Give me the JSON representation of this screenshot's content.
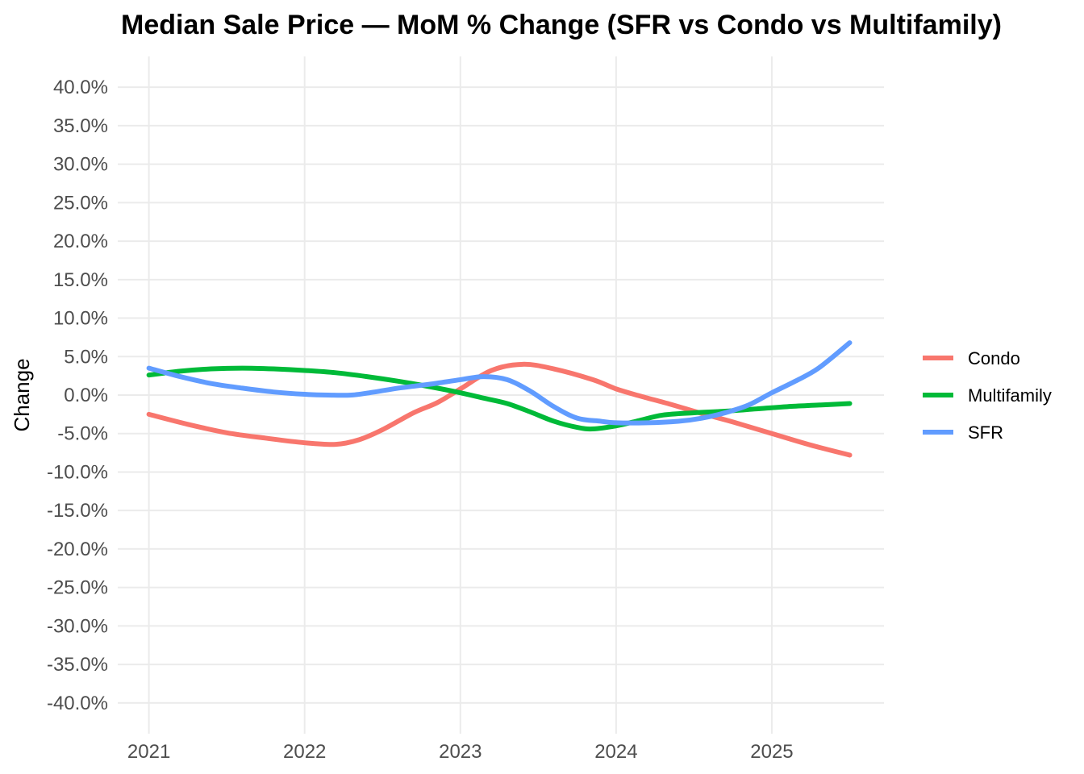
{
  "chart_data": {
    "type": "line",
    "title": "Median Sale Price — MoM % Change (SFR vs Condo vs Multifamily)",
    "xlabel": "",
    "ylabel": "Change",
    "xlim": [
      2020.8,
      2025.72
    ],
    "ylim": [
      -44,
      44
    ],
    "x_ticks": [
      2021,
      2022,
      2023,
      2024,
      2025
    ],
    "x_tick_labels": [
      "2021",
      "2022",
      "2023",
      "2024",
      "2025"
    ],
    "y_ticks": [
      -40,
      -35,
      -30,
      -25,
      -20,
      -15,
      -10,
      -5,
      0,
      5,
      10,
      15,
      20,
      25,
      30,
      35,
      40
    ],
    "y_tick_labels": [
      "-40.0%",
      "-35.0%",
      "-30.0%",
      "-25.0%",
      "-20.0%",
      "-15.0%",
      "-10.0%",
      "-5.0%",
      "0.0%",
      "5.0%",
      "10.0%",
      "15.0%",
      "20.0%",
      "25.0%",
      "30.0%",
      "35.0%",
      "40.0%"
    ],
    "grid": true,
    "legend_position": "right",
    "series": [
      {
        "name": "Condo",
        "color": "#F8766D",
        "x": [
          2021.0,
          2021.25,
          2021.5,
          2021.75,
          2022.0,
          2022.2,
          2022.35,
          2022.5,
          2022.7,
          2022.85,
          2023.0,
          2023.2,
          2023.4,
          2023.6,
          2023.85,
          2024.0,
          2024.15,
          2024.35,
          2024.55,
          2024.75,
          2025.0,
          2025.25,
          2025.5
        ],
        "y": [
          -2.5,
          -3.8,
          -4.9,
          -5.6,
          -6.2,
          -6.4,
          -5.8,
          -4.5,
          -2.3,
          -1.0,
          0.8,
          3.2,
          4.0,
          3.4,
          2.0,
          0.8,
          -0.1,
          -1.2,
          -2.4,
          -3.5,
          -5.0,
          -6.5,
          -7.8
        ]
      },
      {
        "name": "Multifamily",
        "color": "#00BA38",
        "x": [
          2021.0,
          2021.2,
          2021.4,
          2021.6,
          2021.8,
          2022.0,
          2022.2,
          2022.4,
          2022.6,
          2022.8,
          2023.0,
          2023.15,
          2023.3,
          2023.45,
          2023.6,
          2023.75,
          2023.85,
          2024.0,
          2024.15,
          2024.3,
          2024.5,
          2024.7,
          2024.9,
          2025.1,
          2025.3,
          2025.5
        ],
        "y": [
          2.6,
          3.1,
          3.4,
          3.5,
          3.4,
          3.2,
          2.9,
          2.4,
          1.8,
          1.1,
          0.3,
          -0.4,
          -1.1,
          -2.2,
          -3.4,
          -4.2,
          -4.4,
          -4.0,
          -3.3,
          -2.6,
          -2.3,
          -2.1,
          -1.8,
          -1.5,
          -1.3,
          -1.1
        ]
      },
      {
        "name": "SFR",
        "color": "#619CFF",
        "x": [
          2021.0,
          2021.2,
          2021.4,
          2021.6,
          2021.8,
          2022.0,
          2022.15,
          2022.3,
          2022.45,
          2022.6,
          2022.8,
          2023.0,
          2023.15,
          2023.3,
          2023.45,
          2023.6,
          2023.75,
          2023.9,
          2024.0,
          2024.2,
          2024.4,
          2024.55,
          2024.7,
          2024.85,
          2025.0,
          2025.15,
          2025.3,
          2025.5
        ],
        "y": [
          3.5,
          2.4,
          1.5,
          0.9,
          0.4,
          0.1,
          0.0,
          0.0,
          0.4,
          0.9,
          1.4,
          2.0,
          2.4,
          2.0,
          0.5,
          -1.5,
          -3.0,
          -3.4,
          -3.6,
          -3.6,
          -3.4,
          -3.0,
          -2.3,
          -1.3,
          0.3,
          1.8,
          3.5,
          6.8
        ]
      }
    ]
  }
}
